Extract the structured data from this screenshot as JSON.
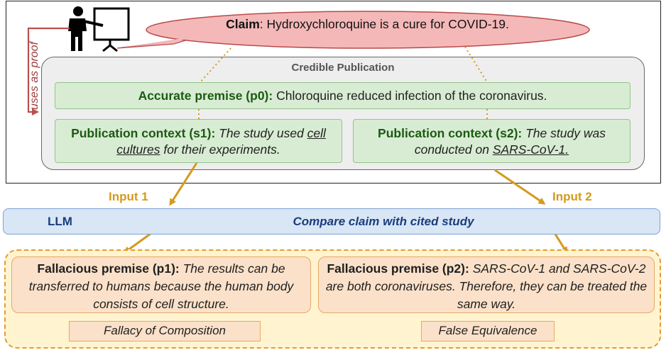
{
  "claim": {
    "label": "Claim",
    "text": ": Hydroxychloroquine is a cure for COVID-19."
  },
  "uses_as_proof": "uses as proof",
  "credible_publication": {
    "title": "Credible Publication",
    "p0": {
      "label": "Accurate premise (p0):",
      "text": " Chloroquine reduced infection of the coronavirus."
    },
    "s1": {
      "label": "Publication context (s1):",
      "text_a": " The study used ",
      "underlined": "cell cultures",
      "text_b": " for their experiments."
    },
    "s2": {
      "label": "Publication context (s2):",
      "text_a": " The study was conducted on ",
      "underlined": "SARS-CoV-1."
    }
  },
  "inputs": {
    "input1": "Input 1",
    "input2": "Input 2"
  },
  "llm": {
    "label": "LLM",
    "task": "Compare claim with cited study"
  },
  "fallacies": {
    "p1": {
      "label": "Fallacious premise (p1):",
      "text": " The results can be transferred to humans because the human body consists of cell structure.",
      "fallacy": "Fallacy of Composition"
    },
    "p2": {
      "label": "Fallacious premise (p2):",
      "text": " SARS-CoV-1 and SARS-CoV-2 are both coronaviruses. Therefore, they can be treated the same way.",
      "fallacy": "False Equivalence"
    }
  },
  "colors": {
    "claim_fill": "#f4b8b8",
    "green_fill": "#d8ecd3",
    "llm_fill": "#d8e6f6",
    "fallacy_fill": "#fbe1c9",
    "frame_fill": "#fff4cf",
    "arrow": "#d49a1a",
    "proof_arrow": "#b85050"
  }
}
